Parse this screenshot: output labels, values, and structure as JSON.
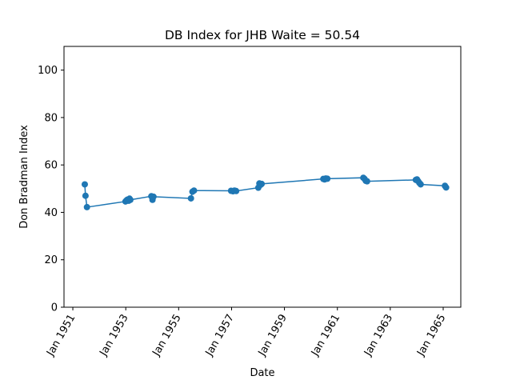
{
  "chart_data": {
    "type": "line",
    "title": "DB Index for JHB Waite = 50.54",
    "xlabel": "Date",
    "ylabel": "Don Bradman Index",
    "ylim": [
      0,
      110
    ],
    "xlim": [
      "1950-09-01",
      "1965-09-01"
    ],
    "yticks": [
      0,
      20,
      40,
      60,
      80,
      100
    ],
    "xticks": [
      {
        "label": "Jan 1951",
        "date": "1951-01-01"
      },
      {
        "label": "Jan 1953",
        "date": "1953-01-01"
      },
      {
        "label": "Jan 1955",
        "date": "1955-01-01"
      },
      {
        "label": "Jan 1957",
        "date": "1957-01-01"
      },
      {
        "label": "Jan 1959",
        "date": "1959-01-01"
      },
      {
        "label": "Jan 1961",
        "date": "1961-01-01"
      },
      {
        "label": "Jan 1963",
        "date": "1963-01-01"
      },
      {
        "label": "Jan 1965",
        "date": "1965-01-01"
      }
    ],
    "grid": false,
    "color": "#1f77b4",
    "series": [
      {
        "name": "",
        "points": [
          {
            "x": "1951-06-15",
            "y": 51.8
          },
          {
            "x": "1951-06-25",
            "y": 47.0
          },
          {
            "x": "1951-07-15",
            "y": 42.2
          },
          {
            "x": "1952-12-28",
            "y": 44.6
          },
          {
            "x": "1953-01-10",
            "y": 45.0
          },
          {
            "x": "1953-01-25",
            "y": 45.4
          },
          {
            "x": "1953-02-10",
            "y": 44.9
          },
          {
            "x": "1953-02-22",
            "y": 45.8
          },
          {
            "x": "1953-03-05",
            "y": 45.3
          },
          {
            "x": "1953-12-20",
            "y": 46.8
          },
          {
            "x": "1954-01-05",
            "y": 45.3
          },
          {
            "x": "1954-01-18",
            "y": 46.6
          },
          {
            "x": "1955-06-20",
            "y": 45.9
          },
          {
            "x": "1955-07-10",
            "y": 48.7
          },
          {
            "x": "1955-08-01",
            "y": 49.2
          },
          {
            "x": "1956-12-25",
            "y": 49.1
          },
          {
            "x": "1957-01-20",
            "y": 48.9
          },
          {
            "x": "1957-02-10",
            "y": 49.2
          },
          {
            "x": "1957-03-05",
            "y": 49.0
          },
          {
            "x": "1958-01-05",
            "y": 50.4
          },
          {
            "x": "1958-01-20",
            "y": 52.2
          },
          {
            "x": "1958-02-05",
            "y": 51.6
          },
          {
            "x": "1958-02-20",
            "y": 52.0
          },
          {
            "x": "1960-06-20",
            "y": 54.1
          },
          {
            "x": "1960-07-08",
            "y": 53.9
          },
          {
            "x": "1960-07-25",
            "y": 54.3
          },
          {
            "x": "1960-08-15",
            "y": 54.2
          },
          {
            "x": "1961-12-25",
            "y": 54.6
          },
          {
            "x": "1962-01-12",
            "y": 54.1
          },
          {
            "x": "1962-01-28",
            "y": 53.3
          },
          {
            "x": "1962-02-15",
            "y": 53.1
          },
          {
            "x": "1963-12-20",
            "y": 53.7
          },
          {
            "x": "1964-01-05",
            "y": 53.9
          },
          {
            "x": "1964-01-20",
            "y": 53.2
          },
          {
            "x": "1964-02-08",
            "y": 52.4
          },
          {
            "x": "1964-02-25",
            "y": 51.8
          },
          {
            "x": "1965-01-25",
            "y": 51.2
          },
          {
            "x": "1965-02-10",
            "y": 50.5
          }
        ]
      }
    ]
  }
}
